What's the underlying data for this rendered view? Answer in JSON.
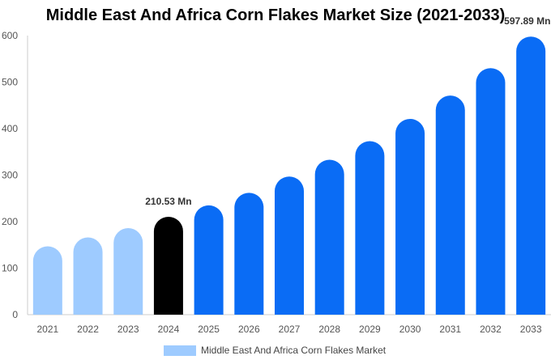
{
  "chart_data": {
    "type": "bar",
    "title": "Middle East And Africa Corn Flakes Market Size (2021-2033)",
    "xlabel": "",
    "ylabel": "",
    "ylim": [
      0,
      600
    ],
    "yticks": [
      0,
      100,
      200,
      300,
      400,
      500,
      600
    ],
    "grid": false,
    "legend_position": "bottom",
    "categories": [
      "2021",
      "2022",
      "2023",
      "2024",
      "2025",
      "2026",
      "2027",
      "2028",
      "2029",
      "2030",
      "2031",
      "2032",
      "2033"
    ],
    "series": [
      {
        "name": "Middle East And Africa Corn Flakes Market",
        "values": [
          147,
          166,
          186,
          210.53,
          235,
          262,
          297,
          333,
          373,
          421,
          471,
          530,
          597.89
        ]
      }
    ],
    "bar_colors": [
      "#9ecbff",
      "#9ecbff",
      "#9ecbff",
      "#000000",
      "#0a6cf5",
      "#0a6cf5",
      "#0a6cf5",
      "#0a6cf5",
      "#0a6cf5",
      "#0a6cf5",
      "#0a6cf5",
      "#0a6cf5",
      "#0a6cf5"
    ],
    "legend_color": "#9ecbff",
    "annotations": [
      {
        "category": "2024",
        "text": "210.53 Mn"
      },
      {
        "category": "2033",
        "text": "597.89 Mn"
      }
    ]
  }
}
